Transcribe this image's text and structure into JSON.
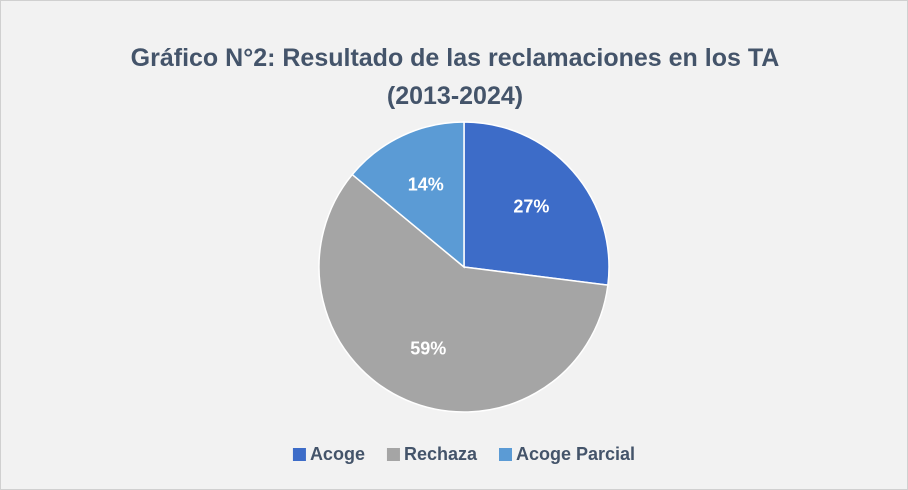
{
  "chart_data": {
    "type": "pie",
    "title": "Gráfico N°2: Resultado de las reclamaciones en los TA (2013-2024)",
    "categories": [
      "Acoge",
      "Rechaza",
      "Acoge Parcial"
    ],
    "values": [
      27,
      59,
      14
    ],
    "value_labels": [
      "27%",
      "59%",
      "14%"
    ],
    "colors": [
      "#3d6cc8",
      "#a5a5a5",
      "#5b9bd5"
    ],
    "legend": "bottom"
  }
}
